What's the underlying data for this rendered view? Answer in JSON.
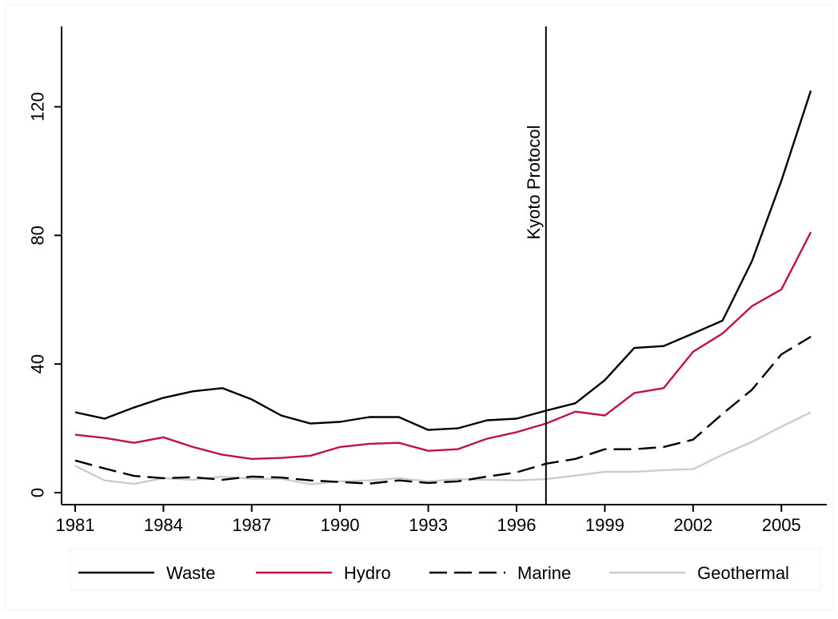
{
  "chart_data": {
    "type": "line",
    "x": [
      1981,
      1982,
      1983,
      1984,
      1985,
      1986,
      1987,
      1988,
      1989,
      1990,
      1991,
      1992,
      1993,
      1994,
      1995,
      1996,
      1997,
      1998,
      1999,
      2000,
      2001,
      2002,
      2003,
      2004,
      2005,
      2006
    ],
    "xticks": [
      1981,
      1984,
      1987,
      1990,
      1993,
      1996,
      1999,
      2002,
      2005
    ],
    "xtick_labels": [
      "1981",
      "1984",
      "1987",
      "1990",
      "1993",
      "1996",
      "1999",
      "2002",
      "2005"
    ],
    "yticks": [
      0,
      40,
      80,
      120
    ],
    "ytick_labels": [
      "0",
      "40",
      "80",
      "120"
    ],
    "xlim": [
      1981,
      2006
    ],
    "ylim": [
      0,
      145
    ],
    "grid": false,
    "legend_position": "bottom",
    "series": [
      {
        "name": "Waste",
        "color": "#000000",
        "dash": "solid",
        "values": [
          25,
          23,
          26.5,
          29.5,
          31.5,
          32.5,
          29,
          24,
          21.5,
          22,
          23.5,
          23.5,
          19.5,
          20,
          22.5,
          23,
          25.5,
          27.8,
          35,
          45,
          45.6,
          49.5,
          53.5,
          72,
          97,
          125
        ]
      },
      {
        "name": "Hydro",
        "color": "#c0104a",
        "dash": "solid",
        "values": [
          18,
          17,
          15.5,
          17.2,
          14.2,
          11.8,
          10.5,
          10.8,
          11.5,
          14.2,
          15.2,
          15.5,
          13,
          13.5,
          16.8,
          18.8,
          21.5,
          25.2,
          24,
          31,
          32.5,
          43.8,
          49.5,
          58,
          63.2,
          81
        ]
      },
      {
        "name": "Marine",
        "color": "#000000",
        "dash": "long-dash",
        "values": [
          10,
          7.5,
          5.2,
          4.5,
          4.8,
          4,
          5,
          4.7,
          3.8,
          3.3,
          2.8,
          3.8,
          3,
          3.5,
          5,
          6.3,
          9,
          10.5,
          13.5,
          13.5,
          14.2,
          16.5,
          24.5,
          32,
          43,
          48.5
        ]
      },
      {
        "name": "Geothermal",
        "color": "#cccccc",
        "dash": "solid",
        "values": [
          8.3,
          3.8,
          2.7,
          4.5,
          4,
          5,
          4.3,
          4.3,
          2.6,
          3.5,
          3.8,
          4.5,
          3.5,
          4.2,
          4,
          3.8,
          4.2,
          5.3,
          6.5,
          6.5,
          7,
          7.3,
          11.8,
          15.8,
          20.5,
          25
        ]
      }
    ],
    "annotations": [
      {
        "x": 1997,
        "label": "Kyoto Protocol"
      }
    ]
  }
}
